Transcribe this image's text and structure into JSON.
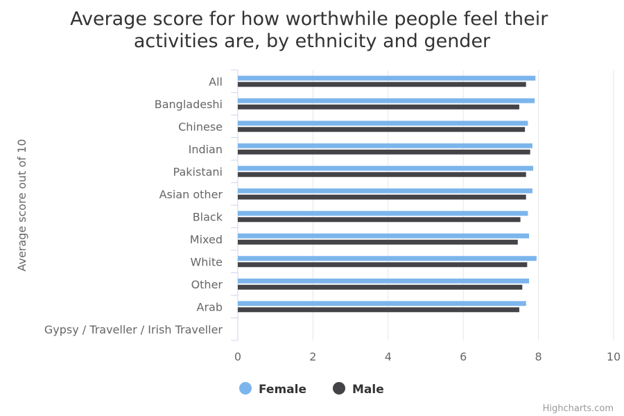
{
  "chart_data": {
    "type": "bar",
    "orientation": "horizontal",
    "title": "Average score for how worthwhile people feel their activities are, by ethnicity and gender",
    "title_lines": [
      "Average score for how worthwhile people feel their",
      "activities are, by ethnicity and gender"
    ],
    "ylabel": "Average score out of 10",
    "xlabel": "",
    "categories": [
      "All",
      "Bangladeshi",
      "Chinese",
      "Indian",
      "Pakistani",
      "Asian other",
      "Black",
      "Mixed",
      "White",
      "Other",
      "Arab",
      "Gypsy / Traveller / Irish Traveller"
    ],
    "series": [
      {
        "name": "Female",
        "color": "#7cb5ec",
        "values": [
          7.92,
          7.9,
          7.72,
          7.84,
          7.86,
          7.84,
          7.72,
          7.75,
          7.95,
          7.75,
          7.67,
          null
        ]
      },
      {
        "name": "Male",
        "color": "#434348",
        "values": [
          7.67,
          7.49,
          7.64,
          7.78,
          7.67,
          7.67,
          7.52,
          7.45,
          7.7,
          7.57,
          7.49,
          null
        ]
      }
    ],
    "value_axis": {
      "min": 0,
      "max": 10,
      "ticks": [
        "0",
        "2",
        "4",
        "6",
        "8",
        "10"
      ]
    },
    "grid": true,
    "legend_position": "bottom-center"
  },
  "credits": "Highcharts.com"
}
